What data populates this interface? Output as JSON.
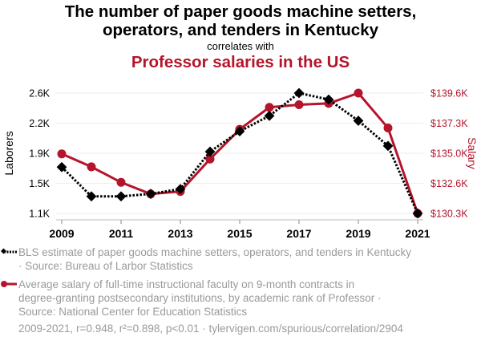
{
  "header": {
    "title_line1": "The number of paper goods machine setters,",
    "title_line2": "operators, and tenders in Kentucky",
    "subtitle": "correlates with",
    "title2": "Professor salaries in the US"
  },
  "colors": {
    "series1": "#000000",
    "series2": "#b5152b",
    "grid": "#eeeeee",
    "muted_text": "#9a9a9a"
  },
  "chart_data": {
    "type": "line",
    "title": "The number of paper goods machine setters, operators, and tenders in Kentucky correlates with Professor salaries in the US",
    "x": [
      2009,
      2010,
      2011,
      2012,
      2013,
      2014,
      2015,
      2016,
      2017,
      2018,
      2019,
      2020,
      2021
    ],
    "x_ticks": [
      "2009",
      "2011",
      "2013",
      "2015",
      "2017",
      "2019",
      "2021"
    ],
    "xlim": [
      2009,
      2021
    ],
    "ylabel_left": "Laborers",
    "ylabel_right": "Salary",
    "y_left_ticks": [
      "1.1K",
      "1.5K",
      "1.9K",
      "2.2K",
      "2.6K"
    ],
    "y_left_lim": [
      1120,
      2600
    ],
    "y_right_ticks": [
      "$130.3K",
      "$132.6K",
      "$135.0K",
      "$137.3K",
      "$139.6K"
    ],
    "y_right_lim": [
      130.3,
      139.6
    ],
    "grid": true,
    "legend_position": "bottom",
    "series": [
      {
        "name": "BLS estimate of paper goods machine setters, operators, and tenders in Kentucky",
        "axis": "left",
        "style": "dotted-diamond",
        "values": [
          1690,
          1330,
          1330,
          1360,
          1420,
          1880,
          2130,
          2320,
          2600,
          2520,
          2260,
          1950,
          1120
        ]
      },
      {
        "name": "Average salary of full-time instructional faculty on 9-month contracts in degree-granting postsecondary institutions, by academic rank of Professor",
        "axis": "right",
        "style": "solid-circle",
        "values": [
          134.9,
          133.9,
          132.7,
          131.8,
          132.0,
          134.5,
          136.8,
          138.5,
          138.7,
          138.8,
          139.6,
          136.9,
          130.3
        ]
      }
    ]
  },
  "legend": {
    "item1_line1": "BLS estimate of paper goods machine setters, operators, and tenders in Kentucky",
    "item1_line2": "· Source: Bureau of Larbor Statistics",
    "item2_line1": "Average salary of full-time instructional faculty on 9-month contracts in",
    "item2_line2": "degree-granting postsecondary institutions, by academic rank of Professor ·",
    "item2_line3": "Source: National Center for Education Statistics"
  },
  "footer": {
    "text": "2009-2021, r=0.948, r²=0.898, p<0.01 · tylervigen.com/spurious/correlation/2904"
  }
}
